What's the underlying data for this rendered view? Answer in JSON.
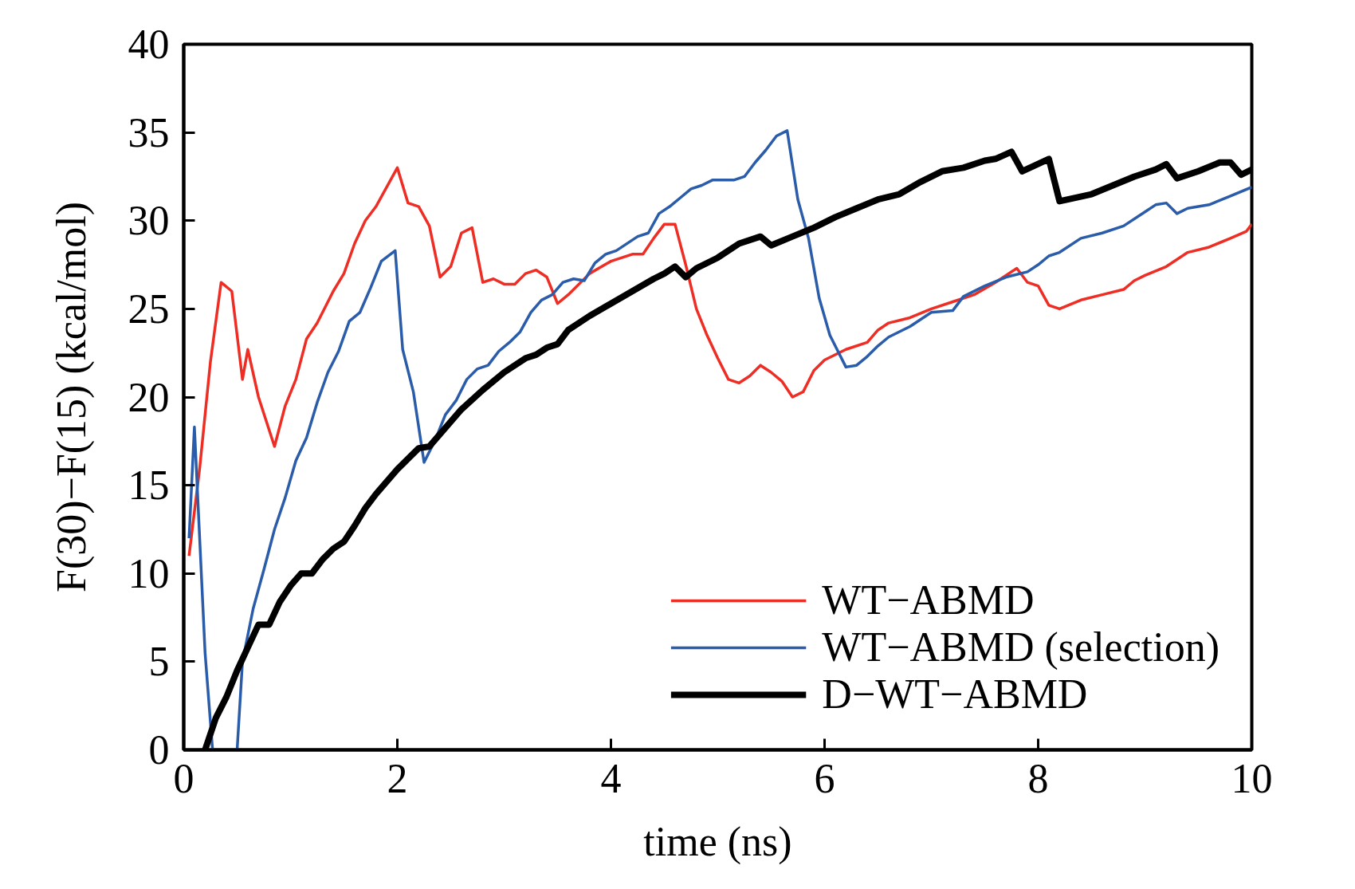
{
  "chart_data": {
    "type": "line",
    "xlabel": "time (ns)",
    "ylabel": "F(30)−F(15) (kcal/mol)",
    "xlim": [
      0,
      10
    ],
    "ylim": [
      0,
      40
    ],
    "xticks": [
      0,
      2,
      4,
      6,
      8,
      10
    ],
    "yticks": [
      0,
      5,
      10,
      15,
      20,
      25,
      30,
      35,
      40
    ],
    "grid": false,
    "legend": "bottom right",
    "line_style": "solid",
    "marker": "none",
    "series": [
      {
        "name": "WT−ABMD",
        "color": "#ee2e24",
        "x": [
          0.05,
          0.15,
          0.25,
          0.35,
          0.45,
          0.55,
          0.6,
          0.7,
          0.85,
          0.95,
          1.05,
          1.15,
          1.25,
          1.4,
          1.5,
          1.6,
          1.7,
          1.8,
          2.0,
          2.1,
          2.2,
          2.3,
          2.4,
          2.5,
          2.6,
          2.7,
          2.8,
          2.9,
          3.0,
          3.1,
          3.2,
          3.3,
          3.4,
          3.5,
          3.6,
          3.8,
          4.0,
          4.2,
          4.3,
          4.4,
          4.5,
          4.6,
          4.7,
          4.8,
          4.9,
          5.0,
          5.1,
          5.2,
          5.3,
          5.4,
          5.5,
          5.6,
          5.7,
          5.8,
          5.9,
          6.0,
          6.2,
          6.4,
          6.5,
          6.6,
          6.8,
          7.0,
          7.2,
          7.4,
          7.6,
          7.8,
          7.9,
          8.0,
          8.1,
          8.2,
          8.4,
          8.6,
          8.8,
          8.9,
          9.0,
          9.2,
          9.4,
          9.6,
          9.8,
          9.95,
          10
        ],
        "values": [
          11,
          16,
          22,
          26.5,
          26,
          21,
          22.7,
          20,
          17.2,
          19.5,
          21,
          23.3,
          24.2,
          26,
          27,
          28.7,
          30,
          30.8,
          33,
          31,
          30.8,
          29.7,
          26.8,
          27.4,
          29.3,
          29.6,
          26.5,
          26.7,
          26.4,
          26.4,
          27,
          27.2,
          26.8,
          25.3,
          25.8,
          27,
          27.7,
          28.1,
          28.1,
          29,
          29.8,
          29.8,
          27.5,
          25,
          23.5,
          22.2,
          21,
          20.8,
          21.2,
          21.8,
          21.4,
          20.9,
          20,
          20.3,
          21.5,
          22.1,
          22.7,
          23.1,
          23.8,
          24.2,
          24.5,
          25,
          25.4,
          25.8,
          26.5,
          27.3,
          26.5,
          26.3,
          25.2,
          25,
          25.5,
          25.8,
          26.1,
          26.6,
          26.9,
          27.4,
          28.2,
          28.5,
          29,
          29.4,
          29.8
        ]
      },
      {
        "name": "WT−ABMD (selection)",
        "color": "#2a5caa",
        "x": [
          0.05,
          0.1,
          0.2,
          0.27,
          0.38,
          0.5,
          0.55,
          0.65,
          0.75,
          0.85,
          0.95,
          1.05,
          1.15,
          1.25,
          1.35,
          1.45,
          1.55,
          1.65,
          1.75,
          1.85,
          1.98,
          2.05,
          2.15,
          2.25,
          2.35,
          2.45,
          2.55,
          2.65,
          2.75,
          2.85,
          2.95,
          3.05,
          3.15,
          3.25,
          3.35,
          3.45,
          3.55,
          3.65,
          3.75,
          3.85,
          3.95,
          4.05,
          4.25,
          4.35,
          4.45,
          4.55,
          4.65,
          4.75,
          4.85,
          4.95,
          5.15,
          5.25,
          5.35,
          5.45,
          5.55,
          5.65,
          5.75,
          5.85,
          5.95,
          6.05,
          6.2,
          6.3,
          6.4,
          6.5,
          6.6,
          6.8,
          7.0,
          7.2,
          7.3,
          7.5,
          7.7,
          7.9,
          8.0,
          8.1,
          8.2,
          8.4,
          8.6,
          8.8,
          9.0,
          9.1,
          9.2,
          9.3,
          9.4,
          9.6,
          9.8,
          10
        ],
        "values": [
          12,
          18.3,
          5.5,
          0,
          null,
          0,
          5,
          8,
          10.2,
          12.5,
          14.3,
          16.4,
          17.7,
          19.7,
          21.4,
          22.6,
          24.3,
          24.8,
          26.2,
          27.7,
          28.3,
          22.7,
          20.3,
          16.3,
          17.5,
          19,
          19.8,
          21,
          21.6,
          21.8,
          22.6,
          23.1,
          23.7,
          24.8,
          25.5,
          25.8,
          26.5,
          26.7,
          26.6,
          27.6,
          28.1,
          28.3,
          29.1,
          29.3,
          30.4,
          30.8,
          31.3,
          31.8,
          32,
          32.3,
          32.3,
          32.5,
          33.3,
          34,
          34.8,
          35.1,
          31.2,
          29,
          25.6,
          23.5,
          21.7,
          21.8,
          22.3,
          22.9,
          23.4,
          24,
          24.8,
          24.9,
          25.7,
          26.3,
          26.8,
          27.1,
          27.5,
          28,
          28.2,
          29,
          29.3,
          29.7,
          30.5,
          30.9,
          31,
          30.4,
          30.7,
          30.9,
          31.4,
          31.9
        ]
      },
      {
        "name": "D−WT−ABMD",
        "color": "#000000",
        "x": [
          0.2,
          0.3,
          0.4,
          0.5,
          0.6,
          0.7,
          0.8,
          0.9,
          1.0,
          1.1,
          1.2,
          1.3,
          1.4,
          1.5,
          1.6,
          1.7,
          1.8,
          1.9,
          2.0,
          2.1,
          2.2,
          2.3,
          2.4,
          2.5,
          2.6,
          2.8,
          3.0,
          3.2,
          3.3,
          3.4,
          3.5,
          3.6,
          3.8,
          4.0,
          4.2,
          4.4,
          4.5,
          4.6,
          4.7,
          4.8,
          5.0,
          5.2,
          5.4,
          5.5,
          5.7,
          5.9,
          6.1,
          6.3,
          6.5,
          6.7,
          6.9,
          7.1,
          7.3,
          7.5,
          7.6,
          7.75,
          7.85,
          8.1,
          8.2,
          8.5,
          8.7,
          8.9,
          9.1,
          9.2,
          9.3,
          9.5,
          9.7,
          9.8,
          9.9,
          10
        ],
        "values": [
          0,
          1.8,
          3,
          4.5,
          5.8,
          7.1,
          7.1,
          8.4,
          9.3,
          10,
          10,
          10.8,
          11.4,
          11.8,
          12.7,
          13.7,
          14.5,
          15.2,
          15.9,
          16.5,
          17.1,
          17.2,
          17.9,
          18.6,
          19.3,
          20.4,
          21.4,
          22.2,
          22.4,
          22.8,
          23,
          23.8,
          24.6,
          25.3,
          26,
          26.7,
          27,
          27.4,
          26.8,
          27.3,
          27.9,
          28.7,
          29.1,
          28.6,
          29.1,
          29.6,
          30.2,
          30.7,
          31.2,
          31.5,
          32.2,
          32.8,
          33,
          33.4,
          33.5,
          33.9,
          32.8,
          33.5,
          31.1,
          31.5,
          32,
          32.5,
          32.9,
          33.2,
          32.4,
          32.8,
          33.3,
          33.3,
          32.6,
          32.9
        ]
      }
    ]
  }
}
